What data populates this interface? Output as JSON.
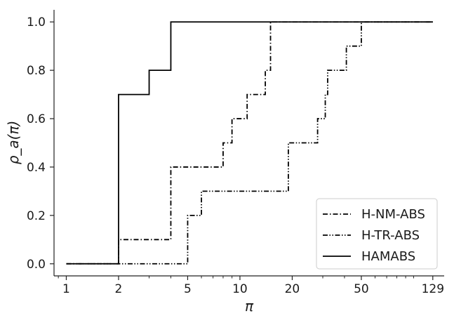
{
  "chart_data": {
    "type": "line",
    "x_scale": "log",
    "xlim": [
      0.85,
      150
    ],
    "ylim": [
      -0.05,
      1.05
    ],
    "xlabel": "π",
    "ylabel": "ρ_a(π)",
    "x_ticks": [
      1,
      2,
      5,
      10,
      20,
      50,
      129
    ],
    "x_tick_labels": [
      "1",
      "2",
      "5",
      "10",
      "20",
      "50",
      "129"
    ],
    "y_ticks": [
      0,
      0.2,
      0.4,
      0.6,
      0.8,
      1.0
    ],
    "y_tick_labels": [
      "0.0",
      "0.2",
      "0.4",
      "0.6",
      "0.8",
      "1.0"
    ],
    "grid": false,
    "legend_position": "bottom-right",
    "step": true,
    "series": [
      {
        "name": "H-NM-ABS",
        "line_style": "dashdot",
        "color": "#000000",
        "x": [
          1,
          2,
          4,
          8,
          9,
          11,
          14,
          15,
          129
        ],
        "y": [
          0,
          0.1,
          0.4,
          0.5,
          0.6,
          0.7,
          0.8,
          1.0,
          1.0
        ]
      },
      {
        "name": "H-TR-ABS",
        "line_style": "dashdotdot",
        "color": "#000000",
        "x": [
          1,
          5,
          6,
          19,
          28,
          31,
          32,
          41,
          50,
          129
        ],
        "y": [
          0,
          0.2,
          0.3,
          0.5,
          0.6,
          0.7,
          0.8,
          0.9,
          1.0,
          1.0
        ]
      },
      {
        "name": "HAMABS",
        "line_style": "solid",
        "color": "#000000",
        "x": [
          1,
          2,
          3,
          4,
          129
        ],
        "y": [
          0,
          0.7,
          0.8,
          1.0,
          1.0
        ]
      }
    ]
  }
}
